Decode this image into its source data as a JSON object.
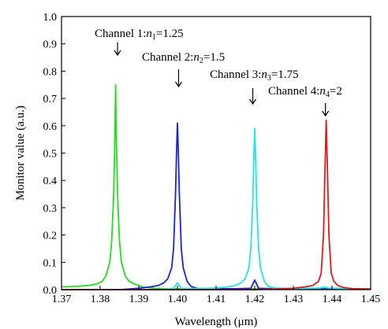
{
  "chart_data": {
    "type": "line",
    "xlabel": "Wavelength (μm)",
    "ylabel": "Monitor value (a.u.)",
    "xlim": [
      1.37,
      1.45
    ],
    "ylim": [
      0.0,
      1.0
    ],
    "xticks": [
      "1.37",
      "1.38",
      "1.39",
      "1.40",
      "1.41",
      "1.42",
      "1.43",
      "1.44",
      "1.45"
    ],
    "yticks": [
      "0.0",
      "0.1",
      "0.2",
      "0.3",
      "0.4",
      "0.5",
      "0.6",
      "0.7",
      "0.8",
      "0.9",
      "1.0"
    ],
    "grid": false,
    "series": [
      {
        "color": "#22e01a",
        "x": [
          1.37,
          1.374,
          1.377,
          1.379,
          1.3805,
          1.3815,
          1.3825,
          1.383,
          1.3835,
          1.3838,
          1.384,
          1.3842,
          1.3845,
          1.385,
          1.3855,
          1.3865,
          1.3875,
          1.389,
          1.391,
          1.394,
          1.398,
          1.4,
          1.405,
          1.41,
          1.415,
          1.42,
          1.425,
          1.43,
          1.435,
          1.44,
          1.445,
          1.45
        ],
        "y": [
          0.01,
          0.012,
          0.015,
          0.02,
          0.03,
          0.05,
          0.1,
          0.18,
          0.35,
          0.55,
          0.75,
          0.55,
          0.35,
          0.18,
          0.1,
          0.05,
          0.03,
          0.02,
          0.01,
          0.005,
          0.003,
          0.003,
          0.003,
          0.003,
          0.003,
          0.003,
          0.003,
          0.003,
          0.003,
          0.003,
          0.003,
          0.003
        ]
      },
      {
        "color": "#1a22d4",
        "x": [
          1.37,
          1.385,
          1.39,
          1.393,
          1.395,
          1.3965,
          1.3975,
          1.3985,
          1.399,
          1.3995,
          1.3998,
          1.4,
          1.4002,
          1.4005,
          1.401,
          1.4015,
          1.4025,
          1.4035,
          1.405,
          1.41,
          1.415,
          1.419,
          1.4195,
          1.42,
          1.4205,
          1.421,
          1.425,
          1.43,
          1.44,
          1.45
        ],
        "y": [
          0.0,
          0.0,
          0.005,
          0.01,
          0.015,
          0.025,
          0.04,
          0.08,
          0.15,
          0.35,
          0.52,
          0.61,
          0.52,
          0.35,
          0.15,
          0.08,
          0.03,
          0.012,
          0.005,
          0.003,
          0.003,
          0.005,
          0.02,
          0.035,
          0.02,
          0.005,
          0.003,
          0.002,
          0.002,
          0.002
        ]
      },
      {
        "color": "#22e6e6",
        "x": [
          1.37,
          1.395,
          1.399,
          1.3995,
          1.4,
          1.4005,
          1.401,
          1.405,
          1.41,
          1.413,
          1.415,
          1.4165,
          1.4175,
          1.4185,
          1.419,
          1.4195,
          1.4198,
          1.42,
          1.4202,
          1.4205,
          1.421,
          1.4215,
          1.4225,
          1.4235,
          1.425,
          1.43,
          1.437,
          1.438,
          1.439,
          1.445,
          1.45
        ],
        "y": [
          0.0,
          0.0,
          0.005,
          0.015,
          0.025,
          0.015,
          0.005,
          0.004,
          0.006,
          0.01,
          0.015,
          0.025,
          0.04,
          0.08,
          0.15,
          0.32,
          0.5,
          0.59,
          0.5,
          0.32,
          0.15,
          0.08,
          0.03,
          0.012,
          0.006,
          0.004,
          0.006,
          0.01,
          0.006,
          0.003,
          0.003
        ]
      },
      {
        "color": "#e01a1a",
        "x": [
          1.37,
          1.42,
          1.425,
          1.43,
          1.433,
          1.435,
          1.4365,
          1.4372,
          1.4378,
          1.4382,
          1.4385,
          1.4388,
          1.4392,
          1.4398,
          1.4405,
          1.4415,
          1.443,
          1.445,
          1.45
        ],
        "y": [
          0.0,
          0.0,
          0.002,
          0.005,
          0.01,
          0.015,
          0.03,
          0.06,
          0.2,
          0.45,
          0.62,
          0.45,
          0.2,
          0.06,
          0.03,
          0.015,
          0.008,
          0.004,
          0.002
        ]
      }
    ],
    "annotations": [
      {
        "prefix": "Channel 1:",
        "var": "n",
        "sub": "1",
        "value": "=1.25",
        "x": 1.3845
      },
      {
        "prefix": "Channel 2:",
        "var": "n",
        "sub": "2",
        "value": "=1.5",
        "x": 1.4003
      },
      {
        "prefix": "Channel 3:",
        "var": "n",
        "sub": "3",
        "value": "=1.75",
        "x": 1.4195
      },
      {
        "prefix": "Channel 4:",
        "var": "n",
        "sub": "4",
        "value": "=2",
        "x": 1.4383
      }
    ]
  }
}
